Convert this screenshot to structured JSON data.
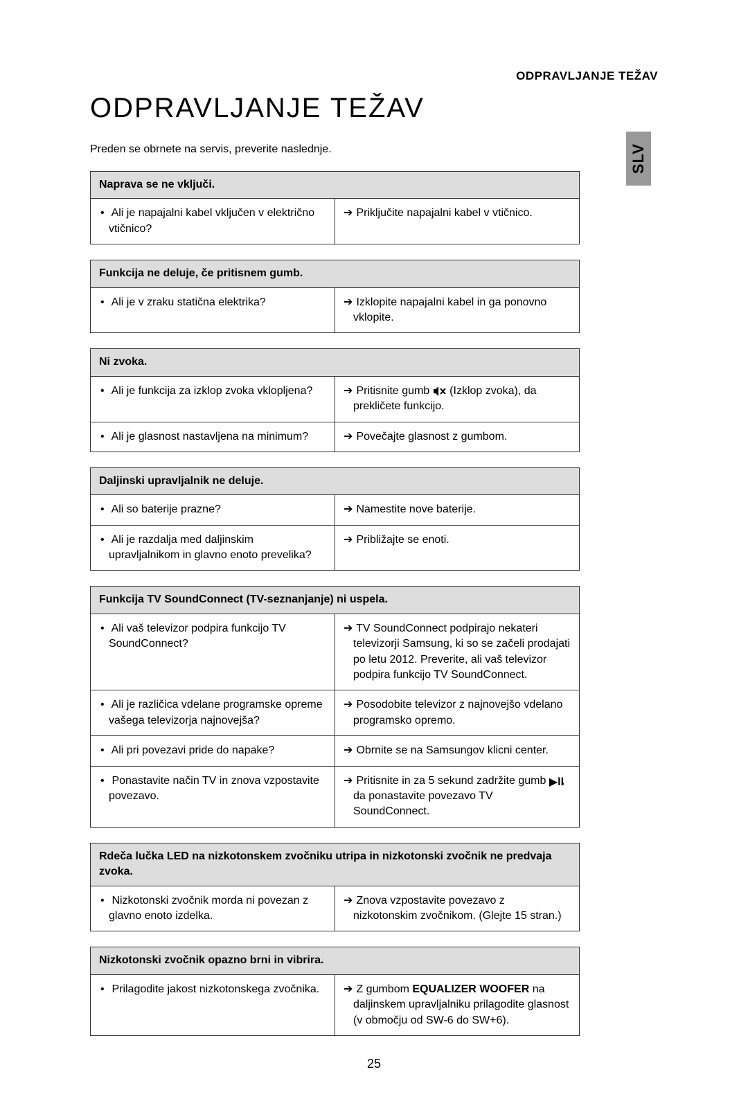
{
  "page": {
    "top_label": "ODPRAVLJANJE TEŽAV",
    "lang_tab": "SLV",
    "heading": "ODPRAVLJANJE TEŽAV",
    "intro": "Preden se obrnete na servis, preverite naslednje.",
    "page_number": "25"
  },
  "colors": {
    "header_bg": "#dddddd",
    "tab_bg": "#999999",
    "border": "#333333",
    "text": "#000000",
    "background": "#ffffff"
  },
  "sections": [
    {
      "title": "Naprava se ne vključi.",
      "rows": [
        {
          "q": "Ali je napajalni kabel vključen v električno vtičnico?",
          "a": "Priključite napajalni kabel v vtičnico."
        }
      ]
    },
    {
      "title": "Funkcija ne deluje, če pritisnem gumb.",
      "rows": [
        {
          "q": "Ali je v zraku statična elektrika?",
          "a": "Izklopite napajalni kabel in ga ponovno vklopite."
        }
      ]
    },
    {
      "title": "Ni zvoka.",
      "rows": [
        {
          "q": "Ali je funkcija za izklop zvoka vklopljena?",
          "a_prefix": "Pritisnite gumb ",
          "a_icon": "mute-icon",
          "a_suffix": " (Izklop zvoka), da prekličete funkcijo."
        },
        {
          "q": "Ali je glasnost nastavljena na minimum?",
          "a": "Povečajte glasnost z gumbom."
        }
      ]
    },
    {
      "title": "Daljinski upravljalnik ne deluje.",
      "rows": [
        {
          "q": "Ali so baterije prazne?",
          "a": "Namestite nove baterije."
        },
        {
          "q": "Ali je razdalja med daljinskim upravljalnikom in glavno enoto prevelika?",
          "a": "Približajte se enoti."
        }
      ]
    },
    {
      "title": "Funkcija TV SoundConnect (TV-seznanjanje) ni uspela.",
      "rows": [
        {
          "q": "Ali vaš televizor podpira funkcijo TV SoundConnect?",
          "a": "TV SoundConnect podpirajo nekateri televizorji Samsung, ki so se začeli prodajati po letu 2012. Preverite, ali vaš televizor podpira funkcijo TV SoundConnect."
        },
        {
          "q": "Ali je različica vdelane programske opreme vašega televizorja najnovejša?",
          "a": "Posodobite televizor z najnovejšo vdelano programsko opremo."
        },
        {
          "q": "Ali pri povezavi pride do napake?",
          "a": "Obrnite se na Samsungov klicni center."
        },
        {
          "q": "Ponastavite način TV in znova vzpostavite povezavo.",
          "a_prefix": "Pritisnite in za 5 sekund zadržite gumb ",
          "a_icon": "play-pause-icon",
          "a_suffix": ", da ponastavite povezavo TV SoundConnect."
        }
      ]
    },
    {
      "title": "Rdeča lučka LED na nizkotonskem zvočniku utripa in nizkotonski zvočnik ne predvaja zvoka.",
      "rows": [
        {
          "q": "Nizkotonski zvočnik morda ni povezan z glavno enoto izdelka.",
          "a": "Znova vzpostavite povezavo z nizkotonskim zvočnikom. (Glejte 15 stran.)"
        }
      ]
    },
    {
      "title": "Nizkotonski zvočnik opazno brni in vibrira.",
      "rows": [
        {
          "q": "Prilagodite jakost nizkotonskega zvočnika.",
          "a_rich": [
            {
              "t": "text",
              "v": "Z gumbom "
            },
            {
              "t": "bold",
              "v": "EQUALIZER WOOFER"
            },
            {
              "t": "text",
              "v": " na daljinskem upravljalniku prilagodite glasnost (v območju od SW-6 do SW+6)."
            }
          ]
        }
      ]
    }
  ]
}
